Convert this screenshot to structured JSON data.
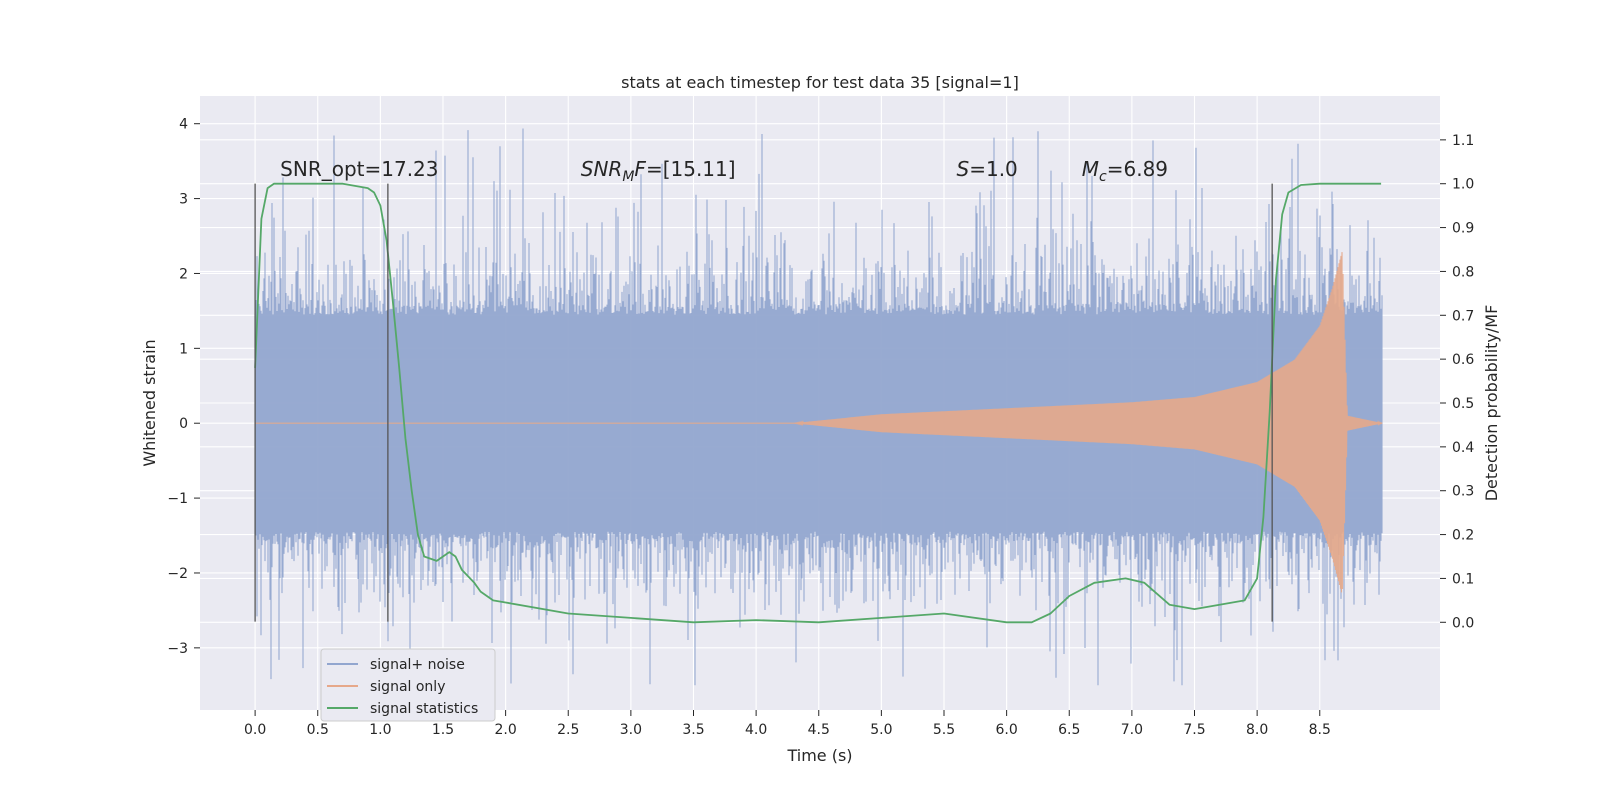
{
  "chart_data": {
    "type": "line",
    "title": "stats at each timestep for test data 35 [signal=1]",
    "xlabel": "Time (s)",
    "ylabel": "Whitened strain",
    "ylabel_right": "Detection probability/MF",
    "xlim": [
      -0.44,
      9.46
    ],
    "ylim": [
      -3.83,
      4.37
    ],
    "ylim_right": [
      -0.2,
      1.2
    ],
    "xticks": [
      "0.0",
      "0.5",
      "1.0",
      "1.5",
      "2.0",
      "2.5",
      "3.0",
      "3.5",
      "4.0",
      "4.5",
      "5.0",
      "5.5",
      "6.0",
      "6.5",
      "7.0",
      "7.5",
      "8.0",
      "8.5"
    ],
    "yticks_left": [
      "−3",
      "−2",
      "−1",
      "0",
      "1",
      "2",
      "3",
      "4"
    ],
    "yticks_right": [
      "0.0",
      "0.1",
      "0.2",
      "0.3",
      "0.4",
      "0.5",
      "0.6",
      "0.7",
      "0.8",
      "0.9",
      "1.0",
      "1.1"
    ],
    "grid": true,
    "legend_position": "lower-left",
    "noise_envelope": {
      "typical": 1.45,
      "peak": 4.0,
      "t_start": 0.0,
      "t_end": 9.0
    },
    "signal_only": {
      "t_start": 4.3,
      "t_merger": 8.68,
      "t_end": 9.0,
      "amplitude": [
        [
          4.3,
          0.0
        ],
        [
          5.0,
          0.12
        ],
        [
          6.0,
          0.2
        ],
        [
          7.0,
          0.28
        ],
        [
          7.5,
          0.35
        ],
        [
          8.0,
          0.55
        ],
        [
          8.3,
          0.85
        ],
        [
          8.5,
          1.3
        ],
        [
          8.6,
          1.8
        ],
        [
          8.68,
          2.3
        ],
        [
          8.72,
          0.1
        ],
        [
          9.0,
          0.0
        ]
      ]
    },
    "series": [
      {
        "name": "signal+ noise",
        "color": "#92a6cf"
      },
      {
        "name": "signal only",
        "color": "#dd8452"
      },
      {
        "name": "signal statistics",
        "color": "#55a868",
        "x": [
          0.0,
          0.05,
          0.1,
          0.15,
          0.2,
          0.3,
          0.5,
          0.7,
          0.9,
          0.95,
          1.0,
          1.05,
          1.1,
          1.15,
          1.2,
          1.25,
          1.3,
          1.35,
          1.45,
          1.55,
          1.6,
          1.65,
          1.75,
          1.8,
          1.9,
          2.0,
          2.5,
          3.0,
          3.5,
          4.0,
          4.5,
          5.0,
          5.5,
          6.0,
          6.2,
          6.35,
          6.5,
          6.7,
          6.95,
          7.1,
          7.3,
          7.5,
          7.7,
          7.9,
          8.0,
          8.05,
          8.1,
          8.15,
          8.2,
          8.25,
          8.35,
          8.5,
          8.75,
          8.99
        ],
        "values": [
          0.58,
          0.92,
          0.99,
          1.0,
          1.0,
          1.0,
          1.0,
          1.0,
          0.99,
          0.98,
          0.95,
          0.87,
          0.73,
          0.58,
          0.42,
          0.3,
          0.2,
          0.15,
          0.14,
          0.16,
          0.15,
          0.12,
          0.09,
          0.07,
          0.05,
          0.045,
          0.02,
          0.01,
          0.0,
          0.005,
          0.0,
          0.01,
          0.02,
          0.0,
          0.0,
          0.02,
          0.06,
          0.09,
          0.1,
          0.09,
          0.04,
          0.03,
          0.04,
          0.05,
          0.1,
          0.24,
          0.48,
          0.78,
          0.93,
          0.98,
          0.997,
          1.0,
          1.0,
          1.0
        ]
      }
    ],
    "vertical_lines": [
      {
        "x": 0.0,
        "y_from": -2.65,
        "y_to": 3.2
      },
      {
        "x": 1.06,
        "y_from": -2.65,
        "y_to": 3.2
      },
      {
        "x": 8.12,
        "y_from": -2.65,
        "y_to": 3.2
      }
    ],
    "annotations": [
      {
        "x": 0.2,
        "y": 3.3,
        "parts": [
          {
            "t": "SNR_opt=17.23"
          }
        ]
      },
      {
        "x": 2.6,
        "y": 3.3,
        "parts": [
          {
            "t": "SNR",
            "i": true
          },
          {
            "t": "M",
            "i": true,
            "sub": true
          },
          {
            "t": "F",
            "i": true
          },
          {
            "t": "=[15.11]"
          }
        ]
      },
      {
        "x": 5.6,
        "y": 3.3,
        "parts": [
          {
            "t": "S",
            "i": true
          },
          {
            "t": "=1.0"
          }
        ]
      },
      {
        "x": 6.6,
        "y": 3.3,
        "parts": [
          {
            "t": "M",
            "i": true
          },
          {
            "t": "c",
            "i": true,
            "sub": true
          },
          {
            "t": "=6.89"
          }
        ]
      }
    ]
  }
}
